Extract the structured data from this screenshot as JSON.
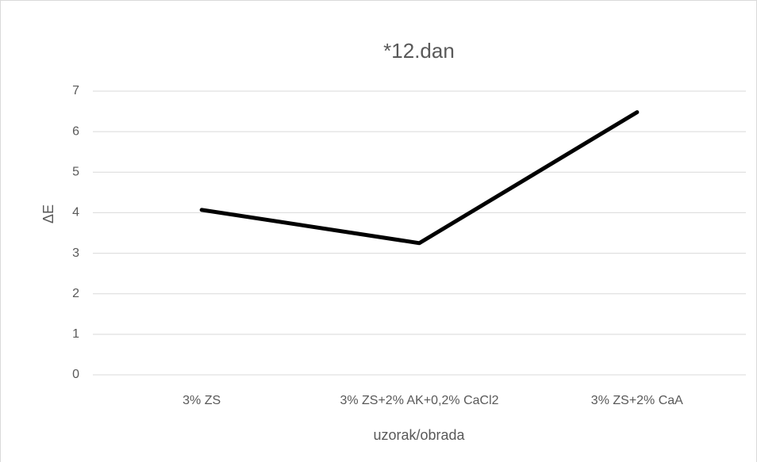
{
  "chart_data": {
    "type": "line",
    "title": "*12.dan",
    "x_label": "uzorak/obrada",
    "y_label": "ΔE",
    "categories": [
      "3% ZS",
      "3% ZS+2% AK+0,2% CaCl2",
      "3% ZS+2% CaA"
    ],
    "series": [
      {
        "name": "ΔE",
        "color": "#000000",
        "values": [
          4.07,
          3.25,
          6.48
        ]
      }
    ],
    "ylim": [
      0,
      7
    ],
    "yticks": [
      0,
      1,
      2,
      3,
      4,
      5,
      6,
      7
    ],
    "grid": true
  }
}
